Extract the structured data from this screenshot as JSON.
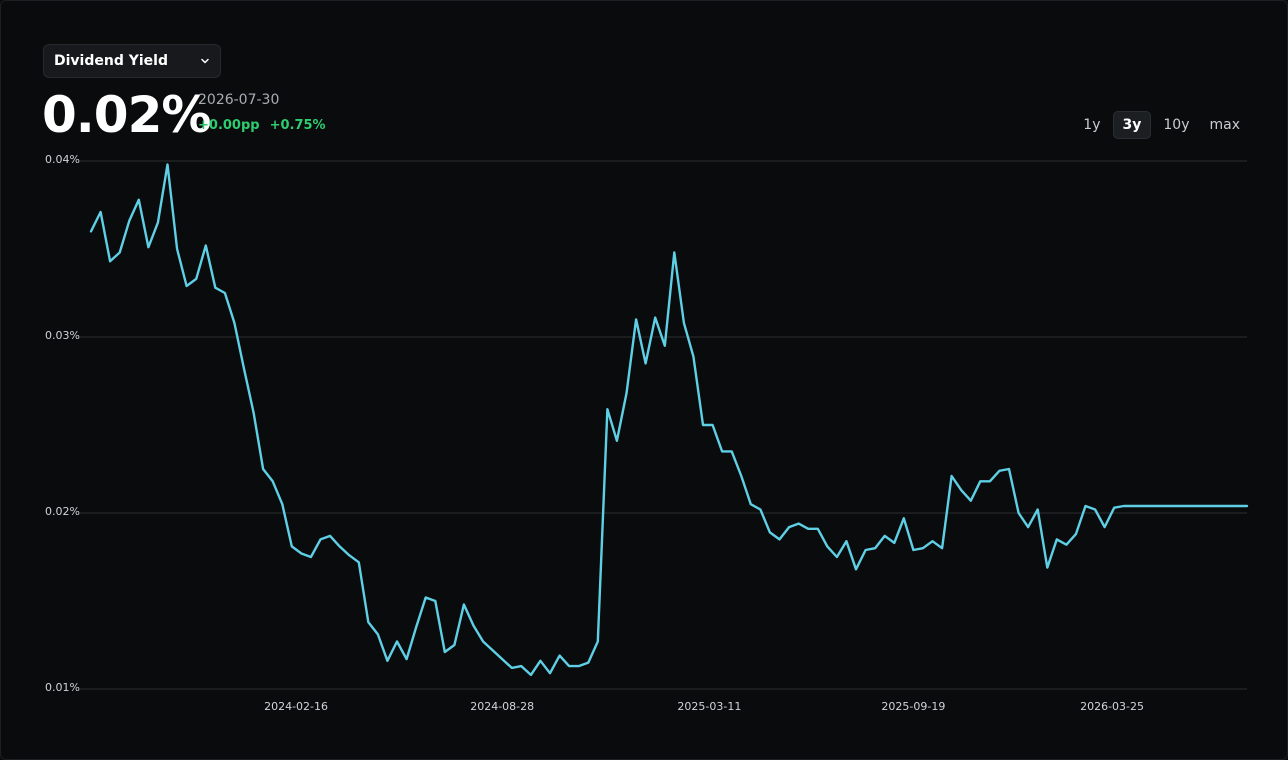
{
  "selector": {
    "label": "Dividend Yield",
    "icon": "chevron-down-icon"
  },
  "summary": {
    "value": "0.02%",
    "date": "2026-07-30",
    "change_abs": "+0.00pp",
    "change_pct": "+0.75%"
  },
  "ranges": [
    {
      "label": "1y",
      "active": false
    },
    {
      "label": "3y",
      "active": true
    },
    {
      "label": "10y",
      "active": false
    },
    {
      "label": "max",
      "active": false
    }
  ],
  "colors": {
    "line": "#5fcfe6",
    "positive": "#2ecc71",
    "grid": "#2a2d30"
  },
  "chart_data": {
    "type": "line",
    "title": "",
    "xlabel": "",
    "ylabel": "",
    "ylim": [
      0.0001,
      0.0004
    ],
    "y_ticks": [
      {
        "value": 0.0004,
        "label": "0.04%"
      },
      {
        "value": 0.0003,
        "label": "0.03%"
      },
      {
        "value": 0.0002,
        "label": "0.02%"
      },
      {
        "value": 0.0001,
        "label": "0.01%"
      }
    ],
    "x_ticks": [
      "2024-02-16",
      "2024-08-28",
      "2025-03-11",
      "2025-09-19",
      "2026-03-25"
    ],
    "grid": "horizontal",
    "x_range": [
      "2023-08-07",
      "2026-07-30"
    ],
    "series": [
      {
        "name": "",
        "x": [
          "2023-08-07",
          "2023-08-16",
          "2023-08-25",
          "2023-09-03",
          "2023-09-12",
          "2023-09-21",
          "2023-09-30",
          "2023-10-09",
          "2023-10-18",
          "2023-10-27",
          "2023-11-05",
          "2023-11-14",
          "2023-11-23",
          "2023-12-02",
          "2023-12-11",
          "2023-12-20",
          "2023-12-29",
          "2024-01-07",
          "2024-01-16",
          "2024-01-25",
          "2024-02-03",
          "2024-02-12",
          "2024-02-21",
          "2024-03-01",
          "2024-03-10",
          "2024-03-19",
          "2024-03-28",
          "2024-04-06",
          "2024-04-15",
          "2024-04-24",
          "2024-05-03",
          "2024-05-12",
          "2024-05-21",
          "2024-05-30",
          "2024-06-08",
          "2024-06-17",
          "2024-06-26",
          "2024-07-05",
          "2024-07-14",
          "2024-07-23",
          "2024-08-01",
          "2024-08-10",
          "2024-08-19",
          "2024-08-28",
          "2024-09-06",
          "2024-09-15",
          "2024-09-24",
          "2024-10-03",
          "2024-10-12",
          "2024-10-21",
          "2024-10-30",
          "2024-11-08",
          "2024-11-17",
          "2024-11-26",
          "2024-12-05",
          "2024-12-14",
          "2024-12-23",
          "2025-01-01",
          "2025-01-10",
          "2025-01-19",
          "2025-01-28",
          "2025-02-06",
          "2025-02-15",
          "2025-02-24",
          "2025-03-05",
          "2025-03-14",
          "2025-03-23",
          "2025-04-01",
          "2025-04-10",
          "2025-04-19",
          "2025-04-28",
          "2025-05-07",
          "2025-05-16",
          "2025-05-25",
          "2025-06-03",
          "2025-06-12",
          "2025-06-21",
          "2025-06-30",
          "2025-07-09",
          "2025-07-18",
          "2025-07-27",
          "2025-08-05",
          "2025-08-14",
          "2025-08-23",
          "2025-09-01",
          "2025-09-10",
          "2025-09-19",
          "2025-09-28",
          "2025-10-07",
          "2025-10-16",
          "2025-10-25",
          "2025-11-03",
          "2025-11-12",
          "2025-11-21",
          "2025-11-30",
          "2025-12-09",
          "2025-12-18",
          "2025-12-27",
          "2026-01-05",
          "2026-01-14",
          "2026-01-23",
          "2026-02-01",
          "2026-02-10",
          "2026-02-19",
          "2026-02-28",
          "2026-03-09",
          "2026-03-18",
          "2026-03-27",
          "2026-04-05",
          "2026-04-14",
          "2026-04-23",
          "2026-05-02",
          "2026-05-11",
          "2026-05-20",
          "2026-05-29",
          "2026-06-07",
          "2026-06-16",
          "2026-06-25",
          "2026-07-04",
          "2026-07-13",
          "2026-07-22",
          "2026-07-30"
        ],
        "values": [
          0.00036,
          0.000371,
          0.000343,
          0.000348,
          0.000366,
          0.000378,
          0.000351,
          0.000365,
          0.000398,
          0.00035,
          0.000329,
          0.000333,
          0.000352,
          0.000328,
          0.000325,
          0.000308,
          0.000282,
          0.000257,
          0.000225,
          0.000218,
          0.000205,
          0.000181,
          0.000177,
          0.000175,
          0.000185,
          0.000187,
          0.000181,
          0.000176,
          0.000172,
          0.000138,
          0.000131,
          0.000116,
          0.000127,
          0.000117,
          0.000135,
          0.000152,
          0.00015,
          0.000121,
          0.000125,
          0.000148,
          0.000136,
          0.000127,
          0.000122,
          0.000117,
          0.000112,
          0.000113,
          0.000108,
          0.000116,
          0.000109,
          0.000119,
          0.000113,
          0.000113,
          0.000115,
          0.000127,
          0.000259,
          0.000241,
          0.000268,
          0.00031,
          0.000285,
          0.000311,
          0.000295,
          0.000348,
          0.000308,
          0.000289,
          0.00025,
          0.00025,
          0.000235,
          0.000235,
          0.000221,
          0.000205,
          0.000202,
          0.000189,
          0.000185,
          0.000192,
          0.000194,
          0.000191,
          0.000191,
          0.000181,
          0.000175,
          0.000184,
          0.000168,
          0.000179,
          0.00018,
          0.000187,
          0.000183,
          0.000197,
          0.000179,
          0.00018,
          0.000184,
          0.00018,
          0.000221,
          0.000213,
          0.000207,
          0.000218,
          0.000218,
          0.000224,
          0.000225,
          0.0002,
          0.000192,
          0.000202,
          0.000169,
          0.000185,
          0.000182,
          0.000188,
          0.000204,
          0.000202,
          0.000192,
          0.000203,
          0.000204,
          0.000204,
          0.000204,
          0.000204,
          0.000204,
          0.000204,
          0.000204,
          0.000204,
          0.000204,
          0.000204,
          0.000204,
          0.000204,
          0.000204,
          0.000204
        ]
      }
    ]
  }
}
